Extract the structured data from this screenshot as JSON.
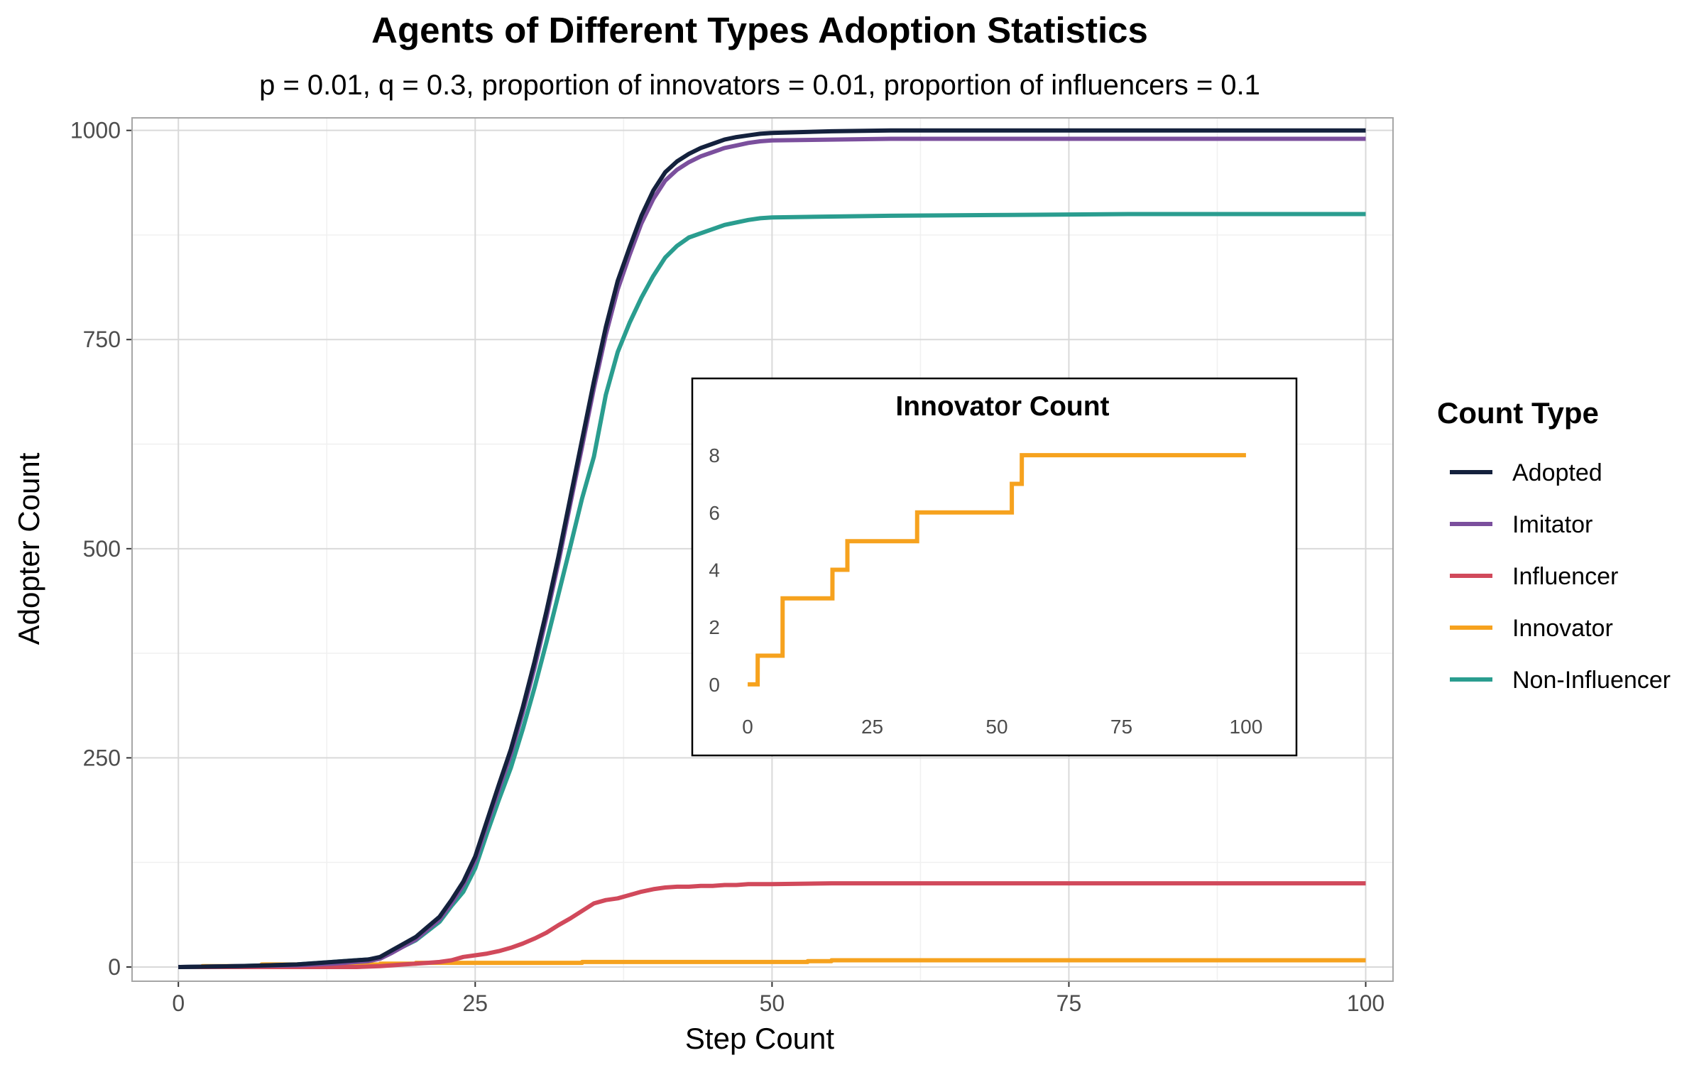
{
  "chart_data": [
    {
      "type": "line",
      "title": "Agents of Different Types Adoption Statistics",
      "subtitle": "p = 0.01, q = 0.3, proportion of innovators = 0.01, proportion of influencers = 0.1",
      "xlabel": "Step Count",
      "ylabel": "Adopter Count",
      "xlim": [
        -3.9,
        102.3
      ],
      "ylim": [
        -17,
        1015
      ],
      "xticks": [
        0,
        25,
        50,
        75,
        100
      ],
      "xtick_labels": [
        "0",
        "25",
        "50",
        "75",
        "100"
      ],
      "yticks": [
        0,
        250,
        500,
        750,
        1000
      ],
      "ytick_labels": [
        "0",
        "250",
        "500",
        "750",
        "1000"
      ],
      "grid": true,
      "legend": {
        "title": "Count Type",
        "position": "right"
      },
      "series": [
        {
          "name": "Adopted",
          "color": "#14213d",
          "x": [
            0,
            5,
            10,
            13,
            15,
            16,
            17,
            18,
            19,
            20,
            21,
            22,
            23,
            24,
            25,
            26,
            27,
            28,
            29,
            30,
            31,
            32,
            33,
            34,
            35,
            36,
            37,
            38,
            39,
            40,
            41,
            42,
            43,
            44,
            45,
            46,
            47,
            48,
            49,
            50,
            55,
            60,
            70,
            80,
            90,
            100
          ],
          "y": [
            0,
            1,
            3,
            6,
            8,
            9,
            12,
            20,
            28,
            36,
            48,
            60,
            80,
            102,
            132,
            175,
            218,
            260,
            310,
            365,
            425,
            490,
            560,
            630,
            700,
            765,
            820,
            860,
            898,
            928,
            950,
            963,
            972,
            979,
            984,
            989,
            992,
            994,
            996,
            997,
            999,
            1000,
            1000,
            1000,
            1000,
            1000
          ]
        },
        {
          "name": "Imitator",
          "color": "#7b4f9d",
          "x": [
            0,
            5,
            10,
            13,
            15,
            16,
            17,
            18,
            19,
            20,
            21,
            22,
            23,
            24,
            25,
            26,
            27,
            28,
            29,
            30,
            31,
            32,
            33,
            34,
            35,
            36,
            37,
            38,
            39,
            40,
            41,
            42,
            43,
            44,
            45,
            46,
            47,
            48,
            49,
            50,
            55,
            60,
            70,
            80,
            90,
            100
          ],
          "y": [
            0,
            1,
            2,
            4,
            6,
            7,
            10,
            17,
            25,
            33,
            45,
            57,
            76,
            98,
            127,
            170,
            212,
            254,
            304,
            358,
            418,
            483,
            553,
            622,
            692,
            756,
            810,
            851,
            889,
            918,
            940,
            953,
            962,
            969,
            974,
            979,
            982,
            985,
            987,
            988,
            989,
            990,
            990,
            990,
            990,
            990
          ]
        },
        {
          "name": "Influencer",
          "color": "#d1495b",
          "x": [
            0,
            10,
            15,
            17,
            18,
            19,
            20,
            21,
            22,
            23,
            24,
            25,
            26,
            27,
            28,
            29,
            30,
            31,
            32,
            33,
            34,
            35,
            36,
            37,
            38,
            39,
            40,
            41,
            42,
            43,
            44,
            45,
            46,
            47,
            48,
            49,
            50,
            55,
            60,
            70,
            80,
            90,
            100
          ],
          "y": [
            0,
            0,
            0,
            1,
            2,
            3,
            4,
            5,
            6,
            8,
            12,
            14,
            16,
            19,
            23,
            28,
            34,
            41,
            50,
            58,
            67,
            76,
            80,
            82,
            86,
            90,
            93,
            95,
            96,
            96,
            97,
            97,
            98,
            98,
            99,
            99,
            99,
            100,
            100,
            100,
            100,
            100,
            100
          ]
        },
        {
          "name": "Innovator",
          "color": "#f6a21e",
          "x": [
            0,
            2,
            2.01,
            7,
            7.01,
            17,
            17.01,
            20,
            20.01,
            34,
            34.01,
            53,
            53.01,
            55,
            55.01,
            100
          ],
          "y": [
            0,
            0,
            1,
            1,
            3,
            3,
            4,
            4,
            5,
            5,
            6,
            6,
            7,
            7,
            8,
            8
          ]
        },
        {
          "name": "Non-Influencer",
          "color": "#2a9d8f",
          "x": [
            0,
            5,
            10,
            13,
            15,
            16,
            17,
            18,
            19,
            20,
            21,
            22,
            23,
            24,
            25,
            26,
            27,
            28,
            29,
            30,
            31,
            32,
            33,
            34,
            35,
            36,
            37,
            38,
            39,
            40,
            41,
            42,
            43,
            44,
            45,
            46,
            47,
            48,
            49,
            50,
            55,
            60,
            70,
            80,
            90,
            100
          ],
          "y": [
            0,
            1,
            3,
            6,
            8,
            9,
            11,
            18,
            25,
            32,
            43,
            54,
            73,
            90,
            118,
            160,
            200,
            238,
            284,
            334,
            388,
            445,
            502,
            560,
            610,
            684,
            735,
            770,
            800,
            826,
            848,
            862,
            872,
            877,
            882,
            887,
            890,
            893,
            895,
            896,
            897,
            898,
            899,
            900,
            900,
            900
          ]
        }
      ]
    },
    {
      "type": "line",
      "title": "Innovator Count",
      "xlim": [
        -5,
        105
      ],
      "ylim": [
        -0.4,
        8.4
      ],
      "xticks": [
        0,
        25,
        50,
        75,
        100
      ],
      "xtick_labels": [
        "0",
        "25",
        "50",
        "75",
        "100"
      ],
      "yticks": [
        0,
        2,
        4,
        6,
        8
      ],
      "ytick_labels": [
        "0",
        "2",
        "4",
        "6",
        "8"
      ],
      "grid": false,
      "series": [
        {
          "color": "#f6a21e",
          "x": [
            0,
            2,
            2.01,
            7,
            7.01,
            17,
            17.01,
            20,
            20.01,
            34,
            34.01,
            53,
            53.01,
            55,
            55.01,
            100
          ],
          "y": [
            0,
            0,
            1,
            1,
            3,
            3,
            4,
            4,
            5,
            5,
            6,
            6,
            7,
            7,
            8,
            8
          ]
        }
      ]
    }
  ]
}
